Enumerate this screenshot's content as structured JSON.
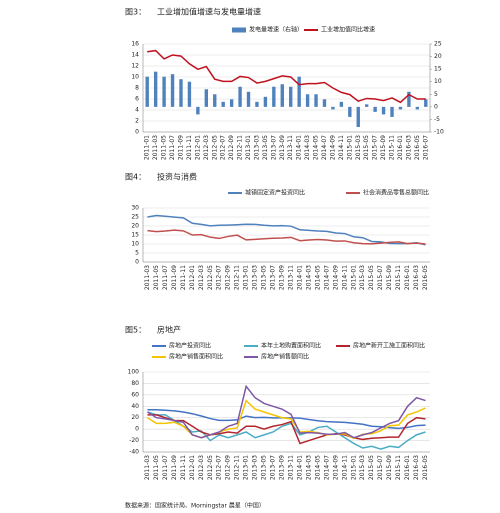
{
  "chart_data": [
    {
      "type": "bar-line",
      "label": "图3：",
      "title": "工业增加值增速与发电量增速",
      "grid": true,
      "categories": [
        "2011-01",
        "2011-03",
        "2011-05",
        "2011-07",
        "2011-09",
        "2011-11",
        "2012-01",
        "2012-03",
        "2012-05",
        "2012-07",
        "2012-09",
        "2012-11",
        "2013-01",
        "2013-03",
        "2013-05",
        "2013-07",
        "2013-09",
        "2013-11",
        "2014-01",
        "2014-03",
        "2014-05",
        "2014-07",
        "2014-09",
        "2014-11",
        "2015-01",
        "2015-03",
        "2015-05",
        "2015-07",
        "2015-09",
        "2015-11",
        "2016-01",
        "2016-03",
        "2016-05",
        "2016-07"
      ],
      "ylim": [
        0,
        16
      ],
      "yticks": [
        0,
        2,
        4,
        6,
        8,
        10,
        12,
        14,
        16
      ],
      "y2lim": [
        -10,
        25
      ],
      "y2ticks": [
        -10,
        -5,
        0,
        5,
        10,
        15,
        20,
        25
      ],
      "series": [
        {
          "name": "发电量增速（右轴）",
          "type": "bar",
          "axis": "y2",
          "color": "#4f81bd",
          "values": [
            12,
            14,
            12,
            13,
            11,
            10,
            -3,
            7,
            5,
            2,
            3,
            8,
            6,
            2,
            4,
            8,
            9,
            8,
            12,
            5,
            5,
            3,
            -1,
            2,
            -4,
            -8,
            1,
            -2,
            -3,
            -4,
            -1,
            6,
            -1,
            3
          ]
        },
        {
          "name": "工业增加值同比增速",
          "type": "line",
          "color": "#c0111f",
          "values": [
            14.6,
            14.8,
            13.3,
            14.0,
            13.8,
            12.4,
            11.4,
            11.9,
            9.6,
            9.2,
            9.2,
            10.1,
            9.9,
            8.9,
            9.2,
            9.7,
            10.2,
            10.0,
            8.6,
            8.8,
            8.8,
            9.0,
            8.0,
            7.2,
            6.8,
            5.6,
            6.1,
            6.0,
            5.7,
            6.2,
            5.4,
            6.8,
            6.0,
            6.0
          ]
        }
      ]
    },
    {
      "type": "line",
      "label": "图4：",
      "title": "投资与消费",
      "grid": true,
      "categories": [
        "2011-03",
        "2011-05",
        "2011-07",
        "2011-09",
        "2011-11",
        "2012-01",
        "2012-03",
        "2012-05",
        "2012-07",
        "2012-09",
        "2012-11",
        "2013-01",
        "2013-03",
        "2013-05",
        "2013-07",
        "2013-09",
        "2013-11",
        "2014-01",
        "2014-03",
        "2014-05",
        "2014-07",
        "2014-09",
        "2014-11",
        "2015-01",
        "2015-03",
        "2015-05",
        "2015-07",
        "2015-09",
        "2015-11",
        "2016-01",
        "2016-03",
        "2016-05"
      ],
      "ylim": [
        0,
        30
      ],
      "yticks": [
        0,
        5,
        10,
        15,
        20,
        25,
        30
      ],
      "series": [
        {
          "name": "城镇固定资产投资同比",
          "color": "#4f81bd",
          "values": [
            25.0,
            25.8,
            25.4,
            24.9,
            24.5,
            21.5,
            20.9,
            20.1,
            20.4,
            20.5,
            20.7,
            21.0,
            20.9,
            20.4,
            20.1,
            20.2,
            19.9,
            17.9,
            17.6,
            17.2,
            17.0,
            16.1,
            15.8,
            14.0,
            13.5,
            11.4,
            11.2,
            10.3,
            10.2,
            10.2,
            10.7,
            9.6
          ]
        },
        {
          "name": "社会消费品零售总额同比",
          "color": "#c0504d",
          "values": [
            17.4,
            16.9,
            17.2,
            17.7,
            17.3,
            15.0,
            15.2,
            13.8,
            13.1,
            14.2,
            14.9,
            12.3,
            12.6,
            12.9,
            13.2,
            13.3,
            13.7,
            11.8,
            12.2,
            12.5,
            12.2,
            11.6,
            11.7,
            10.7,
            10.2,
            10.1,
            10.5,
            10.9,
            11.2,
            10.2,
            10.5,
            10.0
          ]
        }
      ]
    },
    {
      "type": "line",
      "label": "图5：",
      "title": "房地产",
      "grid": true,
      "categories": [
        "2011-03",
        "2011-05",
        "2011-07",
        "2011-09",
        "2011-11",
        "2012-01",
        "2012-03",
        "2012-05",
        "2012-07",
        "2012-09",
        "2012-11",
        "2013-01",
        "2013-03",
        "2013-05",
        "2013-07",
        "2013-09",
        "2013-11",
        "2014-01",
        "2014-03",
        "2014-05",
        "2014-07",
        "2014-09",
        "2014-11",
        "2015-01",
        "2015-03",
        "2015-05",
        "2015-07",
        "2015-09",
        "2015-11",
        "2016-01",
        "2016-03",
        "2016-05"
      ],
      "ylim": [
        -40,
        100
      ],
      "yticks": [
        -40,
        -20,
        0,
        20,
        40,
        60,
        80,
        100
      ],
      "series": [
        {
          "name": "房地产投资同比",
          "color": "#4472c4",
          "values": [
            34,
            34,
            33,
            32,
            30,
            27,
            23,
            18.5,
            15.4,
            15.4,
            16.2,
            22.8,
            20.2,
            20.6,
            19.7,
            19.7,
            19.8,
            19.3,
            16.8,
            14.7,
            13.2,
            12.5,
            11.9,
            10.4,
            8.5,
            5.1,
            4.3,
            2.6,
            1.3,
            3.0,
            6.2,
            7.0
          ]
        },
        {
          "name": "本年土地购置面积同比",
          "color": "#4bacc6",
          "values": [
            30,
            25,
            25,
            15,
            5,
            -5,
            -3,
            -20,
            -10,
            -15,
            -10,
            -5,
            -15,
            -10,
            -5,
            5,
            10,
            -10,
            -5,
            3,
            5,
            -5,
            -15,
            -25,
            -33,
            -30,
            -35,
            -30,
            -32,
            -20,
            -10,
            -5
          ]
        },
        {
          "name": "房地产新开工施工面积同比",
          "color": "#b3262e",
          "values": [
            25,
            25,
            20,
            15,
            15,
            5,
            -5,
            -10,
            -8,
            -5,
            -7,
            5,
            5,
            0,
            5,
            8,
            13,
            -25,
            -20,
            -15,
            -10,
            -8,
            -10,
            -15,
            -18,
            -16,
            -15,
            -14,
            -14,
            10,
            20,
            18
          ]
        },
        {
          "name": "房地产销售面积同比",
          "color": "#f5c400",
          "values": [
            20,
            10,
            10,
            12,
            5,
            -10,
            -15,
            -10,
            -5,
            0,
            2,
            50,
            35,
            30,
            25,
            20,
            18,
            -5,
            -4,
            -6,
            -10,
            -9,
            -8,
            -16,
            -9,
            -8,
            -3,
            6,
            7,
            25,
            30,
            37
          ]
        },
        {
          "name": "房地产销售额同比",
          "color": "#7e57a8",
          "values": [
            30,
            20,
            18,
            15,
            12,
            -10,
            -15,
            -10,
            -5,
            5,
            10,
            75,
            55,
            45,
            40,
            35,
            26,
            -7,
            -6,
            -7,
            -9,
            -9,
            -6,
            -15,
            -10,
            -6,
            2,
            10,
            15,
            40,
            55,
            50
          ]
        }
      ]
    }
  ],
  "source": "数据来源：国家统计局、Morningstar 晨星（中国）"
}
